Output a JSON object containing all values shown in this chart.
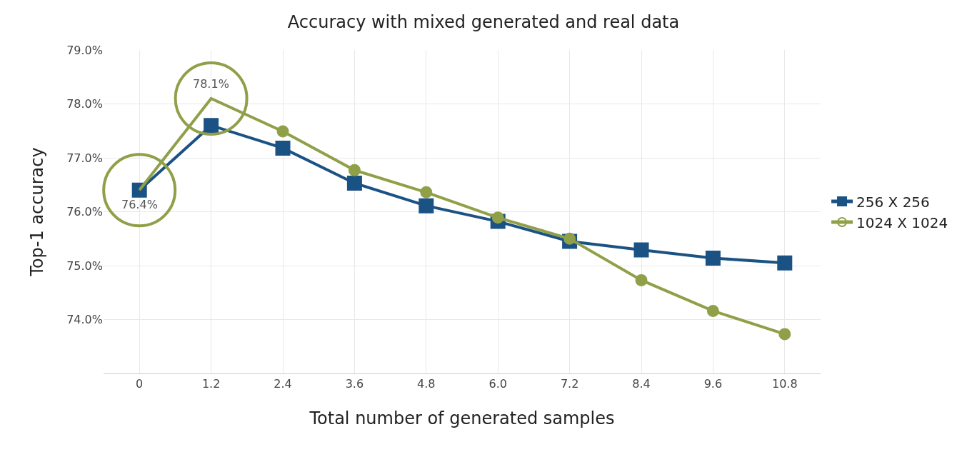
{
  "chart_data": {
    "type": "line",
    "title": "Accuracy with mixed generated and real data",
    "xlabel": "Total number of generated samples",
    "ylabel": "Top-1 accuracy",
    "x": [
      0,
      1.2,
      2.4,
      3.6,
      4.8,
      6.0,
      7.2,
      8.4,
      9.6,
      10.8
    ],
    "series": [
      {
        "name": "256 X 256",
        "color": "#1b5284",
        "marker": "square",
        "values": [
          76.4,
          77.6,
          77.18,
          76.53,
          76.11,
          75.82,
          75.45,
          75.29,
          75.14,
          75.05
        ]
      },
      {
        "name": "1024 X 1024",
        "color": "#8fa048",
        "marker": "circle",
        "values": [
          76.4,
          78.1,
          77.49,
          76.77,
          76.36,
          75.89,
          75.5,
          74.73,
          74.16,
          73.73
        ]
      }
    ],
    "annotations": [
      {
        "text": "76.4%",
        "x": 0,
        "y": 76.4
      },
      {
        "text": "78.1%",
        "x": 1.2,
        "y": 78.1
      }
    ],
    "xlim": [
      -0.6,
      11.4
    ],
    "ylim": [
      73,
      79
    ],
    "xticks": [
      0,
      1.2,
      2.4,
      3.6,
      4.8,
      {
        "value": 6.0,
        "label": "6.0"
      },
      7.2,
      8.4,
      9.6,
      10.8
    ],
    "yticks": [
      {
        "value": 74,
        "label": "74.0%"
      },
      {
        "value": 75,
        "label": "75.0%"
      },
      {
        "value": 76,
        "label": "76.0%"
      },
      {
        "value": 77,
        "label": "77.0%"
      },
      {
        "value": 78,
        "label": "78.0%"
      },
      {
        "value": 79,
        "label": "79.0%"
      }
    ],
    "grid": true,
    "legend": "right",
    "line_style": "solid"
  }
}
